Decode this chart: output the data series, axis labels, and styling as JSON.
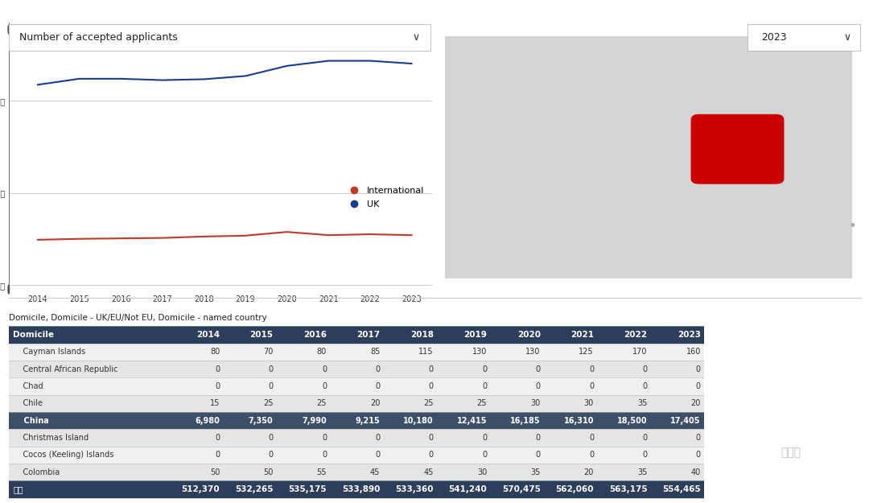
{
  "years": [
    2014,
    2015,
    2016,
    2017,
    2018,
    2019,
    2020,
    2021,
    2022,
    2023
  ],
  "uk_values": [
    0.435,
    0.448,
    0.448,
    0.445,
    0.447,
    0.454,
    0.476,
    0.487,
    0.487,
    0.481
  ],
  "intl_values": [
    0.098,
    0.1,
    0.101,
    0.102,
    0.105,
    0.107,
    0.115,
    0.108,
    0.11,
    0.108
  ],
  "uk_color": "#1a3c8f",
  "intl_color": "#c0392b",
  "chart_title": "Number of accepted applicants",
  "year_dropdown": "2023",
  "bg_color": "#ffffff",
  "table_title": "Domicile, Domicile - UK/EU/Not EU, Domicile - named country",
  "table_header": [
    "Domicile",
    "2014",
    "2015",
    "2016",
    "2017",
    "2018",
    "2019",
    "2020",
    "2021",
    "2022",
    "2023"
  ],
  "table_rows": [
    [
      "    Cayman Islands",
      "80",
      "70",
      "80",
      "85",
      "115",
      "130",
      "130",
      "125",
      "170",
      "160"
    ],
    [
      "    Central African Republic",
      "0",
      "0",
      "0",
      "0",
      "0",
      "0",
      "0",
      "0",
      "0",
      "0"
    ],
    [
      "    Chad",
      "0",
      "0",
      "0",
      "0",
      "0",
      "0",
      "0",
      "0",
      "0",
      "0"
    ],
    [
      "    Chile",
      "15",
      "25",
      "25",
      "20",
      "25",
      "25",
      "30",
      "30",
      "35",
      "20"
    ],
    [
      "    China",
      "6,980",
      "7,350",
      "7,990",
      "9,215",
      "10,180",
      "12,415",
      "16,185",
      "16,310",
      "18,500",
      "17,405"
    ],
    [
      "    Christmas Island",
      "0",
      "0",
      "0",
      "0",
      "0",
      "0",
      "0",
      "0",
      "0",
      "0"
    ],
    [
      "    Cocos (Keeling) Islands",
      "0",
      "0",
      "0",
      "0",
      "0",
      "0",
      "0",
      "0",
      "0",
      "0"
    ],
    [
      "    Colombia",
      "50",
      "50",
      "55",
      "45",
      "45",
      "30",
      "35",
      "20",
      "35",
      "40"
    ]
  ],
  "table_footer": [
    "总计",
    "512,370",
    "532,265",
    "535,175",
    "533,890",
    "533,360",
    "541,240",
    "570,475",
    "562,060",
    "563,175",
    "554,465"
  ],
  "header_bg": "#2c3e5a",
  "header_color": "#ffffff",
  "row_colors": [
    "#f0f0f0",
    "#e5e5e5"
  ],
  "china_row_bg": "#3d5068",
  "china_row_color": "#ffffff",
  "footer_bg": "#2c3e5a",
  "footer_color": "#ffffff",
  "separator_color": "#cccccc"
}
